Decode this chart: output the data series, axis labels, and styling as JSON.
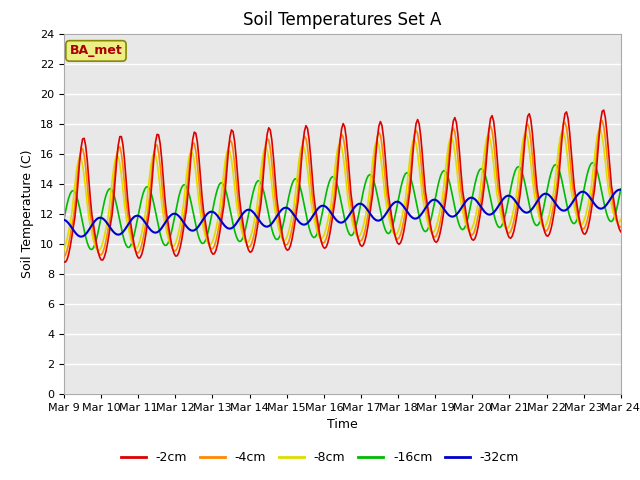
{
  "title": "Soil Temperatures Set A",
  "xlabel": "Time",
  "ylabel": "Soil Temperature (C)",
  "ylim": [
    0,
    24
  ],
  "yticks": [
    0,
    2,
    4,
    6,
    8,
    10,
    12,
    14,
    16,
    18,
    20,
    22,
    24
  ],
  "n_days": 15,
  "x_labels": [
    "Mar 9",
    "Mar 10",
    "Mar 11",
    "Mar 12",
    "Mar 13",
    "Mar 14",
    "Mar 15",
    "Mar 16",
    "Mar 17",
    "Mar 18",
    "Mar 19",
    "Mar 20",
    "Mar 21",
    "Mar 22",
    "Mar 23",
    "Mar 24"
  ],
  "colors": {
    "-2cm": "#dd0000",
    "-4cm": "#ff8800",
    "-8cm": "#dddd00",
    "-16cm": "#00bb00",
    "-32cm": "#0000cc"
  },
  "legend_label": "BA_met",
  "legend_bg": "#eeee88",
  "legend_border": "#888800",
  "background_color": "#e8e8e8",
  "grid_color": "#ffffff",
  "title_fontsize": 12,
  "axis_label_fontsize": 9,
  "tick_fontsize": 8
}
